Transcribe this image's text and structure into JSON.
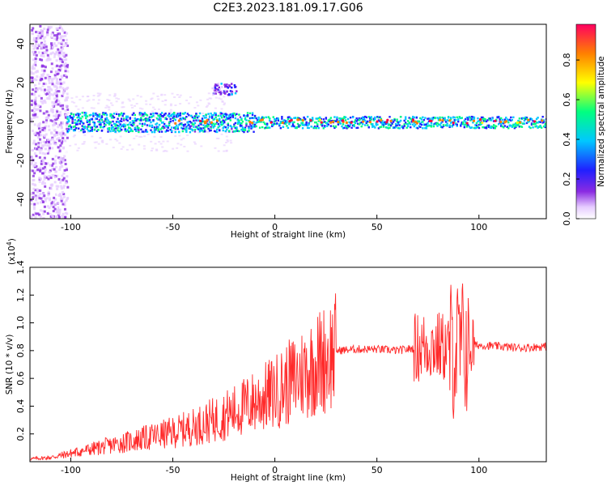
{
  "title": "C2E3.2023.181.09.17.G06",
  "colors": {
    "snr_line": "#ff2a2a",
    "colormap": [
      "#ffffff",
      "#e6ccff",
      "#8a2be2",
      "#2020ff",
      "#00c8ff",
      "#00ff80",
      "#ffff00",
      "#ff8000",
      "#ff0040"
    ]
  },
  "chart_data": [
    {
      "type": "heatmap",
      "title": "C2E3.2023.181.09.17.G06",
      "xlabel": "Height of straight line (km)",
      "ylabel": "Frequency (Hz)",
      "xlim": [
        -120,
        133
      ],
      "ylim": [
        -50,
        50
      ],
      "x_ticks": [
        -100,
        -50,
        0,
        50,
        100
      ],
      "y_ticks": [
        -40,
        -20,
        0,
        20,
        40
      ],
      "colorbar": {
        "label": "Normalized spectral amplitude",
        "range": [
          0.0,
          0.98
        ],
        "ticks": [
          "0.0",
          "0.2",
          "0.4",
          "0.6",
          "0.8"
        ]
      },
      "features": {
        "noise_region_x": [
          -120,
          -102
        ],
        "main_band_center_hz": 0,
        "secondary_blob_hz": 17,
        "secondary_blob_x": [
          -31,
          -18
        ]
      }
    },
    {
      "type": "line",
      "xlabel": "Height of straight line (km)",
      "ylabel": "SNR (10 * v/v)",
      "y_multiplier": "(x10^4)",
      "xlim": [
        -120,
        133
      ],
      "ylim": [
        0,
        14000
      ],
      "x_ticks": [
        -100,
        -50,
        0,
        50,
        100
      ],
      "y_ticks": [
        "0.2",
        "0.4",
        "0.6",
        "0.8",
        "1.0",
        "1.2",
        "1.4"
      ],
      "series": [
        {
          "x": [
            -120,
            -110,
            -100,
            -90,
            -80,
            -70,
            -60,
            -50,
            -40,
            -30,
            -20,
            -10,
            0,
            10,
            20,
            28,
            30,
            40,
            50,
            60,
            70,
            75,
            80,
            85,
            88,
            90,
            92,
            95,
            100,
            110,
            120,
            133
          ],
          "y": [
            200,
            300,
            600,
            900,
            1200,
            1500,
            1800,
            2100,
            2500,
            3000,
            3600,
            4300,
            5000,
            6000,
            7000,
            7800,
            8000,
            8100,
            8100,
            8000,
            8200,
            8400,
            8300,
            8200,
            8000,
            8100,
            8200,
            8300,
            8400,
            8300,
            8200,
            8300
          ]
        }
      ]
    }
  ]
}
